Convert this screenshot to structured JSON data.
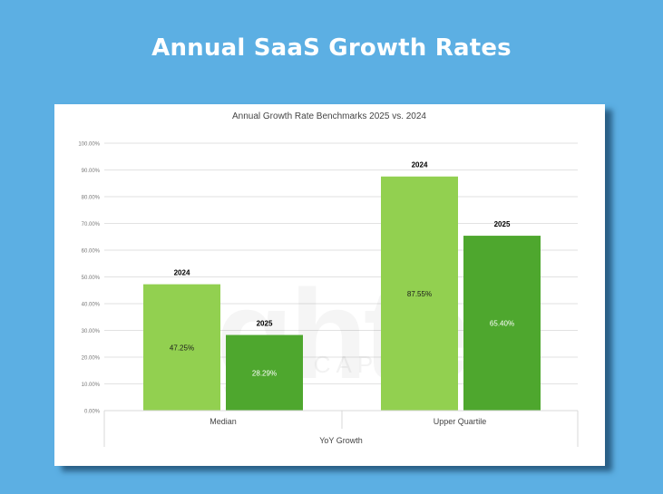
{
  "header": {
    "title": "Annual SaaS Growth Rates"
  },
  "watermark": {
    "text_main": "lighter",
    "text_sub": "CAPITAL"
  },
  "colors": {
    "background": "#5cafe3",
    "series_2024": "#92d050",
    "series_2025": "#4ea72e"
  },
  "chart_data": {
    "type": "bar",
    "title": "Annual Growth Rate Benchmarks 2025 vs. 2024",
    "xlabel": "YoY Growth",
    "ylabel": "",
    "categories": [
      "Median",
      "Upper Quartile"
    ],
    "series": [
      {
        "name": "2024",
        "values": [
          47.25,
          87.55
        ],
        "labels": [
          "47.25%",
          "87.55%"
        ]
      },
      {
        "name": "2025",
        "values": [
          28.29,
          65.4
        ],
        "labels": [
          "28.29%",
          "65.40%"
        ]
      }
    ],
    "ylim": [
      0,
      100
    ],
    "yticks": [
      "0.00%",
      "10.00%",
      "20.00%",
      "30.00%",
      "40.00%",
      "50.00%",
      "60.00%",
      "70.00%",
      "80.00%",
      "90.00%",
      "100.00%"
    ],
    "grid": true,
    "legend": "none"
  }
}
